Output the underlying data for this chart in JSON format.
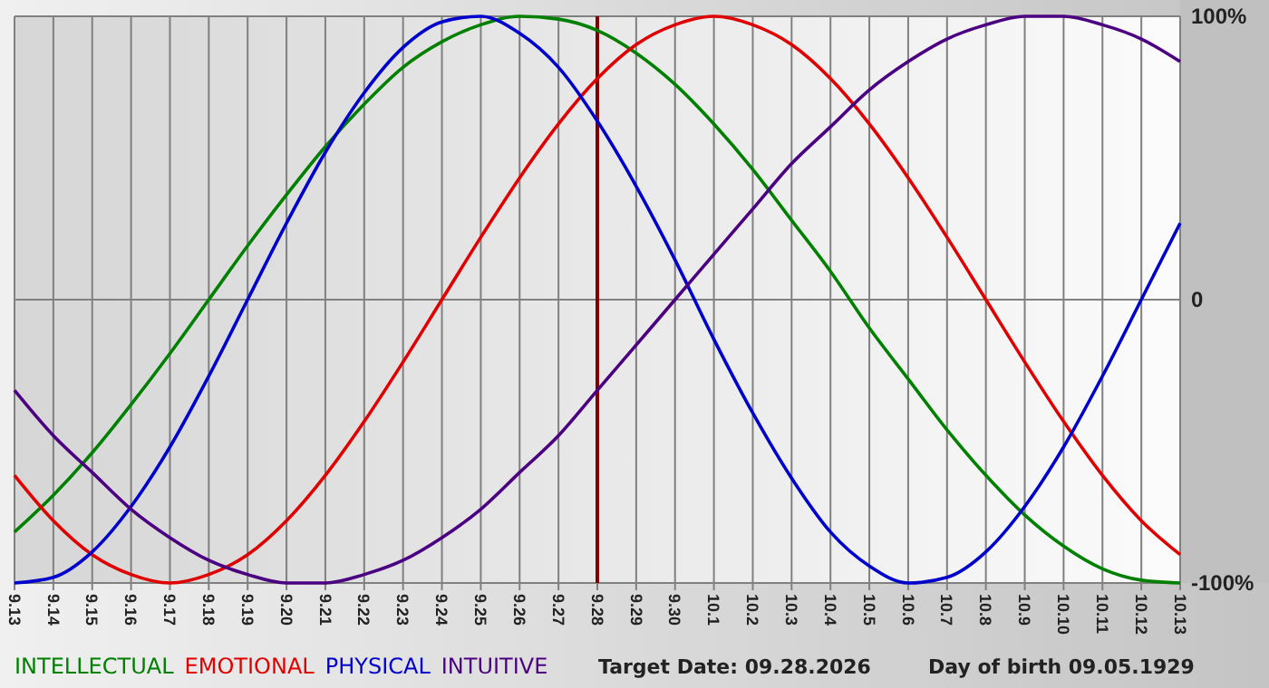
{
  "chart_data": {
    "type": "line",
    "categories": [
      "9.13",
      "9.14",
      "9.15",
      "9.16",
      "9.17",
      "9.18",
      "9.19",
      "9.20",
      "9.21",
      "9.22",
      "9.23",
      "9.24",
      "9.25",
      "9.26",
      "9.27",
      "9.28",
      "9.29",
      "9.30",
      "10.1",
      "10.2",
      "10.3",
      "10.4",
      "10.5",
      "10.6",
      "10.7",
      "10.8",
      "10.9",
      "10.10",
      "10.11",
      "10.12",
      "10.13"
    ],
    "series": [
      {
        "name": "INTELLECTUAL",
        "color": "#008000",
        "values": [
          -82,
          -69,
          -54,
          -37,
          -19,
          0,
          19,
          37,
          54,
          69,
          82,
          91,
          97,
          100,
          99,
          95,
          87,
          76,
          62,
          46,
          28,
          10,
          -10,
          -28,
          -46,
          -62,
          -76,
          -87,
          -95,
          -99,
          -100
        ]
      },
      {
        "name": "EMOTIONAL",
        "color": "#e00000",
        "values": [
          -62,
          -78,
          -90,
          -97,
          -100,
          -97,
          -90,
          -78,
          -62,
          -43,
          -22,
          0,
          22,
          43,
          62,
          78,
          90,
          97,
          100,
          97,
          90,
          78,
          62,
          43,
          22,
          0,
          -22,
          -43,
          -62,
          -78,
          -90
        ]
      },
      {
        "name": "PHYSICAL",
        "color": "#0000cc",
        "values": [
          -100,
          -98,
          -89,
          -73,
          -52,
          -27,
          0,
          27,
          52,
          73,
          89,
          98,
          100,
          94,
          82,
          63,
          40,
          14,
          -14,
          -40,
          -63,
          -82,
          -94,
          -100,
          -98,
          -89,
          -73,
          -52,
          -27,
          0,
          27
        ]
      },
      {
        "name": "INTUITIVE",
        "color": "#4b0082",
        "values": [
          -32,
          -48,
          -61,
          -74,
          -84,
          -92,
          -97,
          -100,
          -100,
          -97,
          -92,
          -84,
          -74,
          -61,
          -48,
          -32,
          -16,
          0,
          16,
          32,
          48,
          61,
          74,
          84,
          92,
          97,
          100,
          100,
          97,
          92,
          84
        ]
      }
    ],
    "ylim": [
      -100,
      100
    ],
    "yticks": [
      {
        "value": 100,
        "label": "100%"
      },
      0,
      {
        "value": -100,
        "label": "-100%"
      }
    ],
    "grid": true,
    "legend": "bottom left",
    "ref_lines": [
      {
        "axis": "x",
        "value": "9.28",
        "color": "#800000"
      }
    ],
    "annotations": [
      "Target Date: 09.28.2026",
      "Day of birth 09.05.1929"
    ]
  }
}
